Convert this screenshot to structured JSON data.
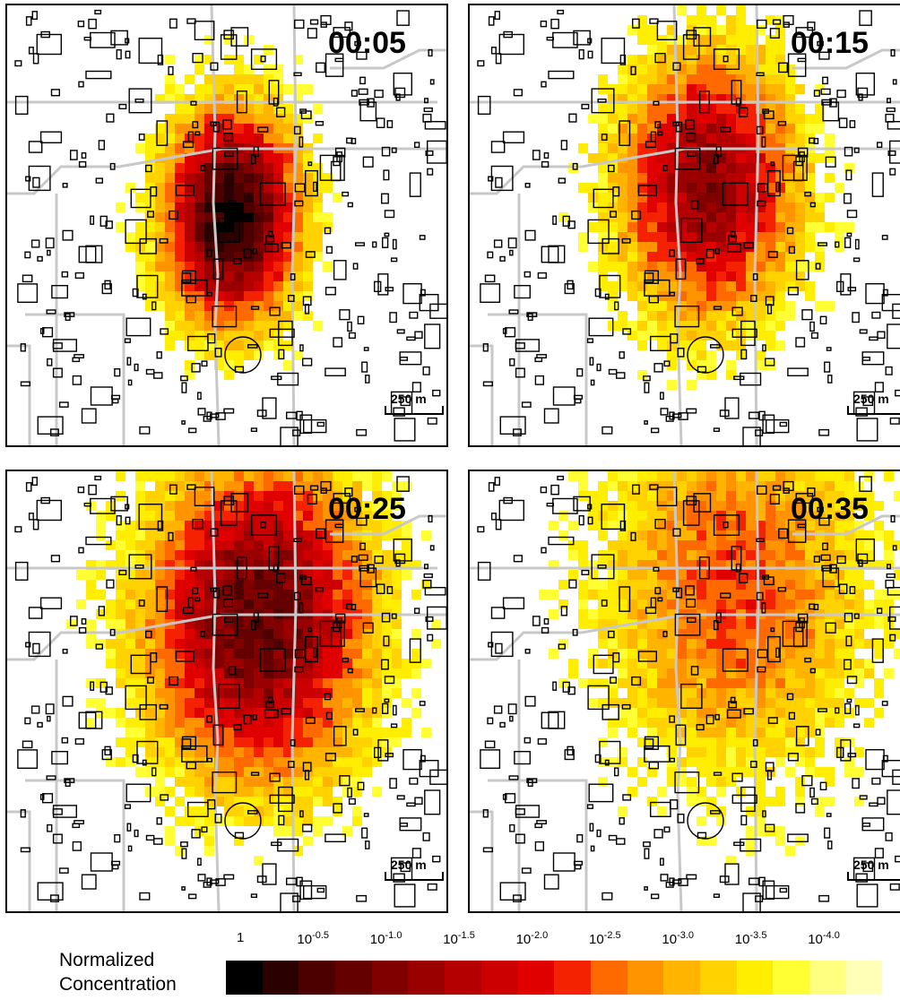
{
  "panels": [
    {
      "time": "00:05",
      "scale_label": "250 m",
      "intensity": 1.0
    },
    {
      "time": "00:15",
      "scale_label": "250 m",
      "intensity": 0.75
    },
    {
      "time": "00:25",
      "scale_label": "250 m",
      "intensity": 0.85
    },
    {
      "time": "00:35",
      "scale_label": "250 m",
      "intensity": 0.45
    }
  ],
  "legend": {
    "title_line1": "Normalized",
    "title_line2": "Concentration",
    "ticks": [
      {
        "base": "1",
        "exp": ""
      },
      {
        "base": "10",
        "exp": "-0.5"
      },
      {
        "base": "10",
        "exp": "-1.0"
      },
      {
        "base": "10",
        "exp": "-1.5"
      },
      {
        "base": "10",
        "exp": "-2.0"
      },
      {
        "base": "10",
        "exp": "-2.5"
      },
      {
        "base": "10",
        "exp": "-3.0"
      },
      {
        "base": "10",
        "exp": "-3.5"
      },
      {
        "base": "10",
        "exp": "-4.0"
      }
    ],
    "colors": [
      "#000000",
      "#2a0000",
      "#4c0000",
      "#650000",
      "#800000",
      "#9b0000",
      "#b40000",
      "#cc0000",
      "#e00000",
      "#f42200",
      "#ff6a00",
      "#ff9400",
      "#ffb400",
      "#ffd200",
      "#ffee00",
      "#ffff33",
      "#ffff80",
      "#ffffb8"
    ]
  }
}
